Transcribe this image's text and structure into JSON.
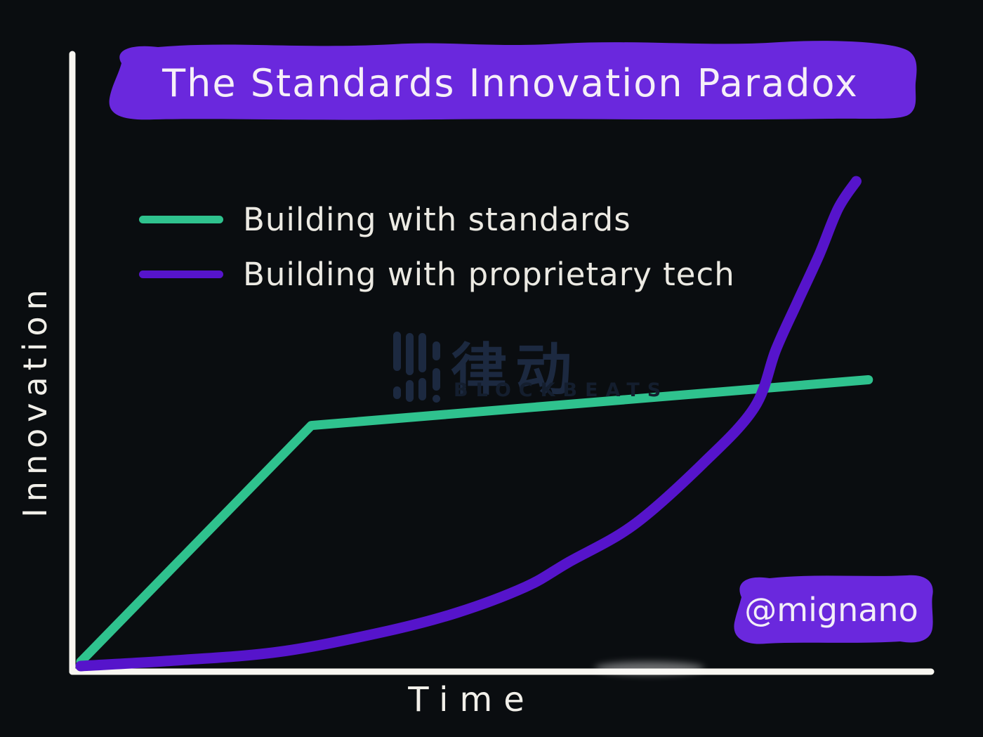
{
  "title": {
    "text": "The Standards Innovation Paradox",
    "highlight_color": "#6a28dd"
  },
  "signature": {
    "text": "@mignano",
    "highlight_color": "#6a28dd"
  },
  "watermark": {
    "logo_icon": "blockbeats-equalizer-icon",
    "cjk_text": "律动",
    "brand_text": "BLOCKBEATS",
    "color": "#1c2940",
    "brand_color": "#141e2e"
  },
  "theme": {
    "background": "#0a0d10",
    "ink": "#efede7",
    "axis_color": "#f8f6f1"
  },
  "chart_data": {
    "type": "line",
    "title": "The Standards Innovation Paradox",
    "xlabel": "Time",
    "ylabel": "Innovation",
    "x_range": [
      0,
      10
    ],
    "y_range": [
      0,
      10
    ],
    "grid": false,
    "axis_ticks": "none (conceptual sketch)",
    "legend_position": "upper-left",
    "series": [
      {
        "name": "Building with standards",
        "color": "#2fc28e",
        "smooth": false,
        "shape": "rises steeply then plateaus (kink at t≈2.7)",
        "points": [
          [
            0,
            0.15
          ],
          [
            2.67,
            3.97
          ],
          [
            9.12,
            4.71
          ]
        ]
      },
      {
        "name": "Building with proprietary tech",
        "color": "#5614cb",
        "smooth": true,
        "shape": "starts flat, exponential growth, overtakes standards line at t≈7.9",
        "points": [
          [
            0,
            0.08
          ],
          [
            1.1,
            0.17
          ],
          [
            2.3,
            0.31
          ],
          [
            3.5,
            0.63
          ],
          [
            4.35,
            0.94
          ],
          [
            5.15,
            1.36
          ],
          [
            5.65,
            1.76
          ],
          [
            6.4,
            2.36
          ],
          [
            7.2,
            3.35
          ],
          [
            7.8,
            4.26
          ],
          [
            8.05,
            5.2
          ],
          [
            8.3,
            5.97
          ],
          [
            8.55,
            6.73
          ],
          [
            8.77,
            7.48
          ],
          [
            8.98,
            7.92
          ]
        ]
      }
    ]
  }
}
